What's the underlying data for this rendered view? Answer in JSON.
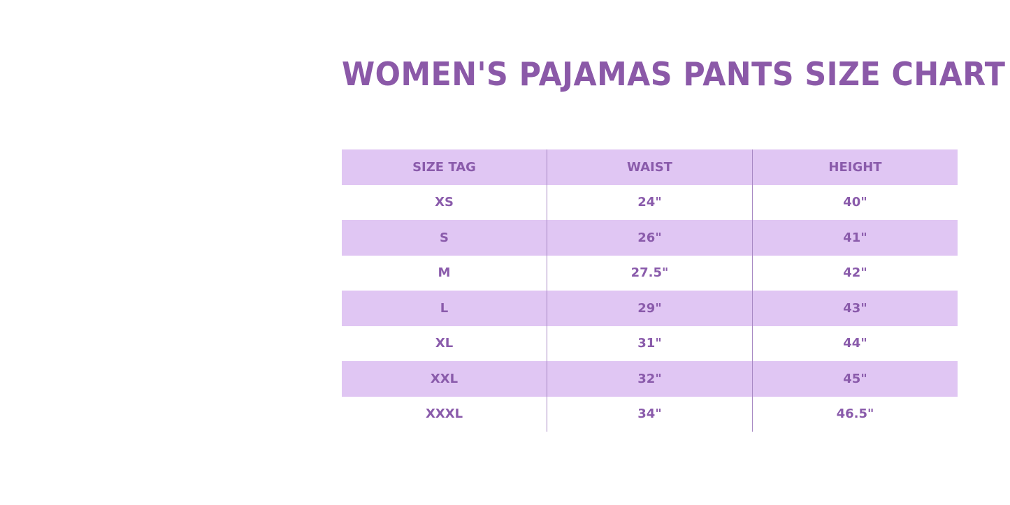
{
  "title": "WOMEN'S PAJAMAS PANTS SIZE CHART",
  "colors": {
    "accent": "#8b59a8",
    "stripe": "#e0c6f3"
  },
  "table": {
    "headers": [
      "SIZE TAG",
      "WAIST",
      "HEIGHT"
    ],
    "rows": [
      [
        "XS",
        "24\"",
        "40\""
      ],
      [
        "S",
        "26\"",
        "41\""
      ],
      [
        "M",
        "27.5\"",
        "42\""
      ],
      [
        "L",
        "29\"",
        "43\""
      ],
      [
        "XL",
        "31\"",
        "44\""
      ],
      [
        "XXL",
        "32\"",
        "45\""
      ],
      [
        "XXXL",
        "34\"",
        "46.5\""
      ]
    ]
  }
}
